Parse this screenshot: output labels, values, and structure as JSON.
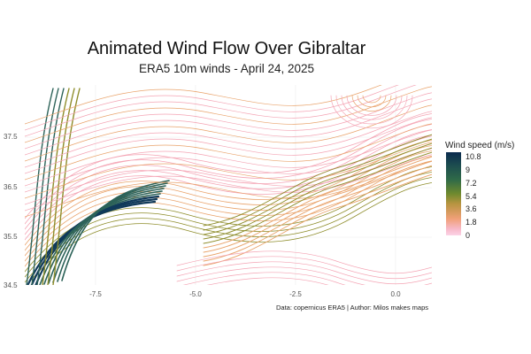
{
  "title": "Animated Wind Flow Over Gibraltar",
  "subtitle": "ERA5 10m winds - April 24, 2025",
  "caption": "Data: copernicus ERA5 | Author: Milos makes maps",
  "legend": {
    "title": "Wind speed (m/s)",
    "ticks": [
      "10.8",
      "9",
      "7.2",
      "5.4",
      "3.6",
      "1.8",
      "0"
    ],
    "gradient": [
      "#0b2b4f",
      "#1e4f4f",
      "#2f6a48",
      "#6f8a2e",
      "#b79440",
      "#f0a078",
      "#f7b8c7",
      "#fcd3e6"
    ]
  },
  "axes": {
    "x_ticks": [
      "-7.5",
      "-5.0",
      "-2.5",
      "0.0"
    ],
    "y_ticks": [
      "37.5",
      "36.5",
      "35.5",
      "34.5"
    ],
    "xlim": [
      -9.6,
      0.8
    ],
    "ylim": [
      34.5,
      38.6
    ]
  },
  "colors": {
    "low": "#f4a4b4",
    "mid_low": "#e9a36b",
    "mid": "#8e8d2b",
    "high": "#2c6258",
    "max": "#103a5a"
  }
}
